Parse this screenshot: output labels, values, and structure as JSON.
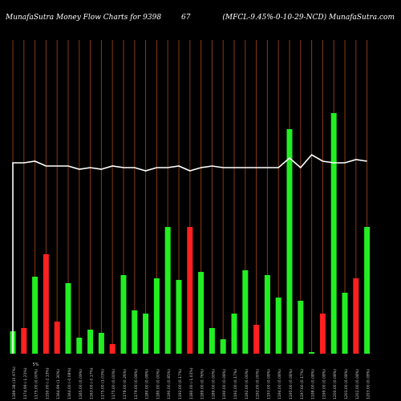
{
  "header": {
    "left": "MunafaSutra  Money Flow  Charts for 9398",
    "middle": "67",
    "right": "(MFCL-9.45%-0-10-29-NCD) MunafaSutra.com"
  },
  "colors": {
    "background": "#000000",
    "up": "#22ee22",
    "down": "#ff2020",
    "grid": "#8a3a12",
    "line": "#ffffff",
    "label": "#cccccc"
  },
  "chart_data": {
    "type": "bar",
    "grid": true,
    "ylim": [
      0,
      100
    ],
    "categories": [
      "01-05-2025",
      "06-05-2025",
      "07-05-2025",
      "08-05-2025",
      "09-05-2025",
      "12-05-2025",
      "13-05-2025",
      "14-05-2025",
      "15-05-2025",
      "16-05-2025",
      "19-05-2025",
      "20-05-2025",
      "21-05-2025",
      "22-05-2025",
      "23-05-2025",
      "26-05-2025",
      "27-05-2025",
      "28-05-2025",
      "29-05-2025",
      "30-05-2025",
      "02-06-2025",
      "03-06-2025",
      "04-06-2025",
      "05-06-2025",
      "06-06-2025",
      "09-06-2025",
      "10-06-2025",
      "11-06-2025",
      "12-06-2025",
      "13-06-2025",
      "16-06-2025",
      "17-06-2025",
      "18-06-2025"
    ],
    "tick_labels": [
      "1189.38 (10.97%)",
      "1174.99 (-1.21%)",
      "1175.00 (0.00%)",
      "1150.00 (-2.13%)",
      "1164.99 (1.30%)",
      "1164.00 (-0.08%)",
      "1165.00 (0.09%)",
      "1163.00 (-0.17%)",
      "1175.00 (1.03%)",
      "1175.00 (0.00%)",
      "1178.00 (0.26%)",
      "1179.00 (0.08%)",
      "1180.00 (0.08%)",
      "1180.00 (0.00%)",
      "1190.00 (0.85%)",
      "1192.00 (0.17%)",
      "1180.00 (-1.01%)",
      "1189.00 (0.76%)",
      "1189.00 (0.00%)",
      "1190.00 (0.08%)",
      "1192.00 (0.17%)",
      "1192.00 (0.00%)",
      "1192.00 (0.00%)",
      "1193.00 (0.08%)",
      "1194.00 (0.08%)",
      "1195.00 (0.08%)",
      "1197.00 (0.17%)",
      "1198.00 (0.08%)",
      "1199.00 (0.08%)",
      "1200.00 (0.08%)",
      "1201.00 (0.08%)",
      "1202.00 (0.08%)",
      "1203.00 (0.08%)"
    ],
    "tick_extra": "5%",
    "bar_values": [
      14,
      16,
      48,
      62,
      20,
      44,
      10,
      15,
      13,
      6,
      49,
      27,
      25,
      47,
      79,
      46,
      79,
      51,
      16,
      9,
      25,
      52,
      18,
      49,
      35,
      140,
      33,
      1,
      25,
      150,
      38,
      47,
      79
    ],
    "bar_direction": [
      "up",
      "down",
      "up",
      "down",
      "down",
      "up",
      "up",
      "up",
      "up",
      "down",
      "up",
      "up",
      "up",
      "up",
      "up",
      "up",
      "down",
      "up",
      "up",
      "up",
      "up",
      "up",
      "down",
      "up",
      "up",
      "up",
      "up",
      "up",
      "down",
      "up",
      "up",
      "down",
      "up"
    ],
    "line_values": [
      119,
      119,
      120,
      117,
      117,
      117,
      115,
      116,
      115,
      117,
      116,
      116,
      114,
      116,
      116,
      117,
      114,
      116,
      117,
      116,
      116,
      116,
      116,
      116,
      116,
      122,
      116,
      124,
      120,
      119,
      119,
      121,
      120
    ]
  }
}
